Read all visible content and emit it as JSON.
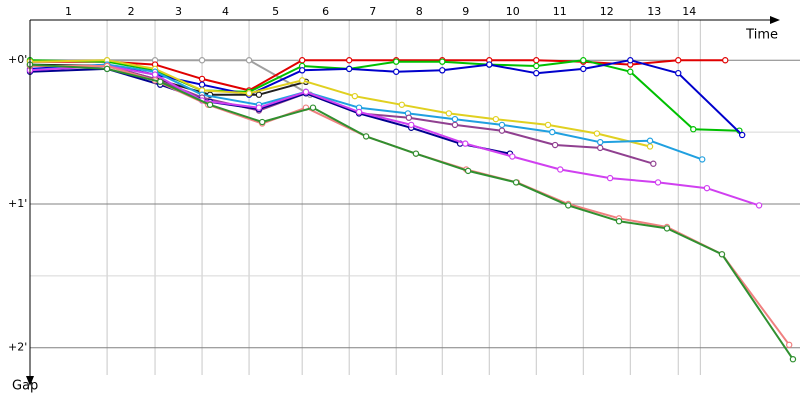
{
  "chart_data": {
    "type": "line",
    "x_label": "Time",
    "y_label": "Gap",
    "y_inverted": true,
    "xlim": [
      0,
      16.38
    ],
    "ylim": [
      -0.28,
      2.19
    ],
    "lap_lines": [
      0,
      1.64,
      2.66,
      3.66,
      4.66,
      5.79,
      6.79,
      7.79,
      8.77,
      9.77,
      10.77,
      11.77,
      12.77,
      13.79,
      14.26
    ],
    "categories": [
      "1",
      "2",
      "3",
      "4",
      "5",
      "6",
      "7",
      "8",
      "9",
      "10",
      "11",
      "12",
      "13",
      "14"
    ],
    "yticks": [
      {
        "value": 0,
        "label": "+0'"
      },
      {
        "value": 1,
        "label": "+1'"
      },
      {
        "value": 2,
        "label": "+2'"
      }
    ],
    "minor_yticks": [
      0.5,
      1.5
    ],
    "series": [
      {
        "color": "#a0a0a0",
        "x": [
          0,
          1.64,
          2.66,
          3.66,
          4.66,
          5.96
        ],
        "values": [
          0,
          0,
          0,
          0,
          0,
          0.24
        ]
      },
      {
        "color": "#e00000",
        "x": [
          0,
          1.64,
          2.66,
          3.66,
          4.66,
          5.79,
          6.79,
          7.79,
          8.77,
          9.77,
          10.77,
          11.77,
          12.77,
          13.79,
          14.79
        ],
        "values": [
          0.01,
          0.01,
          0.03,
          0.13,
          0.21,
          0,
          0,
          0,
          0,
          0,
          0,
          0.01,
          0.03,
          0,
          0
        ]
      },
      {
        "color": "#00c000",
        "x": [
          0,
          1.64,
          2.66,
          3.66,
          4.66,
          5.79,
          6.79,
          7.79,
          8.77,
          9.77,
          10.77,
          11.77,
          12.77,
          14.11,
          15.09
        ],
        "values": [
          0,
          0.01,
          0.07,
          0.21,
          0.22,
          0.04,
          0.06,
          0.01,
          0.01,
          0.03,
          0.04,
          0,
          0.08,
          0.48,
          0.49
        ]
      },
      {
        "color": "#0000cc",
        "x": [
          0,
          1.64,
          2.66,
          3.66,
          4.66,
          5.79,
          6.79,
          7.79,
          8.77,
          9.77,
          10.77,
          11.77,
          12.77,
          13.79,
          15.15
        ],
        "values": [
          0.06,
          0.03,
          0.1,
          0.17,
          0.24,
          0.07,
          0.06,
          0.08,
          0.07,
          0.03,
          0.09,
          0.06,
          0,
          0.09,
          0.52
        ]
      },
      {
        "color": "#202020",
        "x": [
          0,
          1.64,
          2.77,
          3.83,
          4.87,
          5.87
        ],
        "values": [
          0.03,
          0.04,
          0.14,
          0.24,
          0.24,
          0.15
        ]
      },
      {
        "color": "#e0d020",
        "x": [
          0,
          1.64,
          2.66,
          3.66,
          4.66,
          5.79,
          6.91,
          7.91,
          8.91,
          9.91,
          11.02,
          12.06,
          13.19
        ],
        "values": [
          0.01,
          0,
          0.06,
          0.21,
          0.23,
          0.14,
          0.25,
          0.31,
          0.37,
          0.41,
          0.45,
          0.51,
          0.6
        ]
      },
      {
        "color": "#20a0e0",
        "x": [
          0,
          1.64,
          2.66,
          3.66,
          4.87,
          5.87,
          7.0,
          8.04,
          9.04,
          10.04,
          11.11,
          12.13,
          13.19,
          14.3
        ],
        "values": [
          0.07,
          0.03,
          0.08,
          0.24,
          0.31,
          0.22,
          0.33,
          0.37,
          0.41,
          0.45,
          0.5,
          0.57,
          0.56,
          0.69
        ]
      },
      {
        "color": "#904090",
        "x": [
          0,
          1.64,
          2.66,
          3.66,
          4.87,
          5.87,
          7.0,
          8.06,
          9.04,
          10.04,
          11.17,
          12.13,
          13.26
        ],
        "values": [
          0.04,
          0.04,
          0.13,
          0.26,
          0.35,
          0.23,
          0.37,
          0.4,
          0.45,
          0.49,
          0.59,
          0.61,
          0.72
        ]
      },
      {
        "color": "#000090",
        "x": [
          0,
          1.64,
          2.77,
          3.83,
          4.87,
          5.87,
          7.0,
          8.11,
          9.15,
          10.21
        ],
        "values": [
          0.08,
          0.06,
          0.17,
          0.29,
          0.34,
          0.23,
          0.37,
          0.47,
          0.58,
          0.65
        ]
      },
      {
        "color": "#d040f0",
        "x": [
          0,
          1.64,
          2.66,
          3.66,
          4.87,
          5.87,
          7.0,
          8.11,
          9.26,
          10.26,
          11.28,
          12.34,
          13.36,
          14.4,
          15.51
        ],
        "values": [
          0.07,
          0.04,
          0.1,
          0.28,
          0.33,
          0.22,
          0.36,
          0.45,
          0.58,
          0.67,
          0.76,
          0.82,
          0.85,
          0.89,
          1.01
        ]
      },
      {
        "color": "#f08080",
        "x": [
          0,
          1.64,
          2.66,
          3.79,
          4.94,
          5.87,
          7.15,
          8.21,
          9.28,
          10.36,
          11.45,
          12.53,
          13.55,
          14.72,
          16.15
        ],
        "values": [
          0.04,
          0.04,
          0.14,
          0.31,
          0.44,
          0.33,
          0.53,
          0.65,
          0.76,
          0.85,
          1.0,
          1.1,
          1.16,
          1.35,
          1.98
        ]
      },
      {
        "color": "#309030",
        "x": [
          0,
          1.64,
          2.77,
          3.83,
          4.94,
          6.02,
          7.15,
          8.21,
          9.32,
          10.34,
          11.45,
          12.53,
          13.55,
          14.72,
          16.23
        ],
        "values": [
          0.03,
          0.06,
          0.15,
          0.31,
          0.43,
          0.33,
          0.53,
          0.65,
          0.77,
          0.85,
          1.01,
          1.12,
          1.17,
          1.35,
          2.08
        ]
      }
    ]
  }
}
